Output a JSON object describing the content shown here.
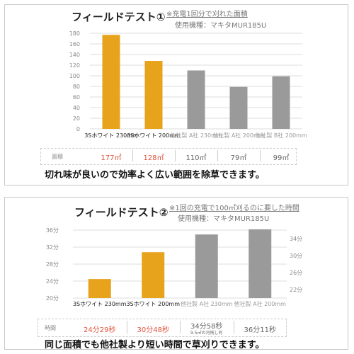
{
  "panel1": {
    "title": "フィールドテスト①",
    "note": "※充電1回分で刈れた面積",
    "model": "使用機種：マキタMUR185U",
    "row_label": "面積",
    "caption": "切れ味が良いので効率よく広い範囲を除草できます。"
  },
  "panel2": {
    "title": "フィールドテスト②",
    "note": "※1回の充電で100㎡刈るのに要した時間",
    "model": "使用機種：マキタMUR185U",
    "row_label": "時間",
    "caption": "同じ面積でも他社製より短い時間で草刈りできます。",
    "footnote": "9.5㎡の刈残し有"
  },
  "colors": {
    "orange": "#e8a31d",
    "gray": "#9a9a9a",
    "red": "#e0533a",
    "grid": "#dddddd"
  },
  "chart_data": [
    {
      "type": "bar",
      "title": "フィールドテスト①",
      "categories": [
        "3Sホワイト 230mm",
        "3Sホワイト 200mm",
        "他社製 A社 230mm",
        "他社製 A社 200mm",
        "他社製 B社 200mm"
      ],
      "values": [
        177,
        128,
        110,
        79,
        99
      ],
      "value_labels": [
        "177㎡",
        "128㎡",
        "110㎡",
        "79㎡",
        "99㎡"
      ],
      "yticks": [
        "0",
        "20",
        "40",
        "60",
        "80",
        "100",
        "120",
        "140",
        "160",
        "180"
      ],
      "ylim": [
        0,
        180
      ],
      "grid": true,
      "bar_colors": [
        "orange",
        "orange",
        "gray",
        "gray",
        "gray"
      ]
    },
    {
      "type": "bar",
      "title": "フィールドテスト②",
      "categories": [
        "3Sホワイト 230mm",
        "3Sホワイト 200mm",
        "他社製 A社 230mm",
        "他社製 A社 200mm"
      ],
      "values_minutes": [
        24.48,
        30.8,
        34.97,
        36.18
      ],
      "value_labels": [
        "24分29秒",
        "30分48秒",
        "34分58秒",
        "36分11秒"
      ],
      "left_axis": {
        "ticks": [
          "20分",
          "24分",
          "28分",
          "32分",
          "36分"
        ],
        "ylim": [
          20,
          37
        ]
      },
      "right_axis": {
        "ticks": [
          "22分",
          "26分",
          "30分",
          "34分"
        ],
        "ylim": [
          20,
          37
        ]
      },
      "grid": true,
      "bar_colors": [
        "orange",
        "orange",
        "gray",
        "gray"
      ]
    }
  ]
}
